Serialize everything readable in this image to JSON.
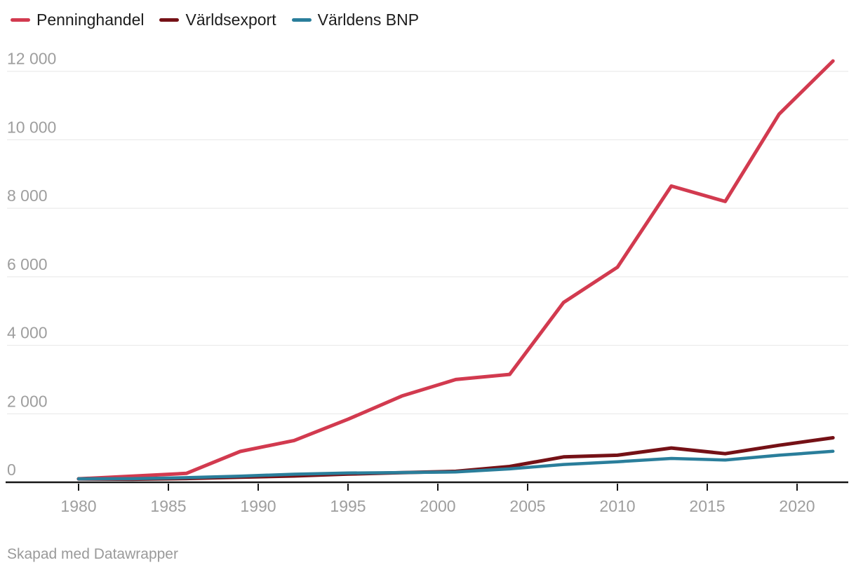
{
  "legend": {
    "items": [
      {
        "label": "Penninghandel",
        "color": "#d23a4f"
      },
      {
        "label": "Världsexport",
        "color": "#751116"
      },
      {
        "label": "Världens BNP",
        "color": "#2a7e9b"
      }
    ]
  },
  "footer": {
    "text": "Skapad med Datawrapper"
  },
  "chart_data": {
    "type": "line",
    "title": "",
    "xlabel": "",
    "ylabel": "",
    "xlim": [
      1980,
      2022
    ],
    "ylim": [
      0,
      12000
    ],
    "grid": true,
    "legend_position": "top",
    "grid_color": "#e7e7e7",
    "baseline_color": "#161616",
    "tick_label_color": "#9e9e9e",
    "x_ticks": [
      {
        "value": 1980,
        "label": "1980"
      },
      {
        "value": 1985,
        "label": "1985"
      },
      {
        "value": 1990,
        "label": "1990"
      },
      {
        "value": 1995,
        "label": "1995"
      },
      {
        "value": 2000,
        "label": "2000"
      },
      {
        "value": 2005,
        "label": "2005"
      },
      {
        "value": 2010,
        "label": "2010"
      },
      {
        "value": 2015,
        "label": "2015"
      },
      {
        "value": 2020,
        "label": "2020"
      }
    ],
    "y_ticks": [
      {
        "value": 0,
        "label": "0"
      },
      {
        "value": 2000,
        "label": "2 000"
      },
      {
        "value": 4000,
        "label": "4 000"
      },
      {
        "value": 6000,
        "label": "6 000"
      },
      {
        "value": 8000,
        "label": "8 000"
      },
      {
        "value": 10000,
        "label": "10 000"
      },
      {
        "value": 12000,
        "label": "12 000"
      }
    ],
    "series": [
      {
        "name": "Penninghandel",
        "color": "#d23a4f",
        "points": [
          [
            1980,
            100
          ],
          [
            1986,
            260
          ],
          [
            1989,
            900
          ],
          [
            1992,
            1220
          ],
          [
            1995,
            1840
          ],
          [
            1998,
            2520
          ],
          [
            2001,
            3000
          ],
          [
            2004,
            3150
          ],
          [
            2007,
            5250
          ],
          [
            2010,
            6280
          ],
          [
            2013,
            8650
          ],
          [
            2016,
            8200
          ],
          [
            2019,
            10750
          ],
          [
            2022,
            12300
          ]
        ]
      },
      {
        "name": "Världsexport",
        "color": "#751116",
        "points": [
          [
            1980,
            100
          ],
          [
            1983,
            90
          ],
          [
            1986,
            110
          ],
          [
            1989,
            150
          ],
          [
            1992,
            185
          ],
          [
            1995,
            240
          ],
          [
            1998,
            280
          ],
          [
            2001,
            320
          ],
          [
            2004,
            460
          ],
          [
            2007,
            740
          ],
          [
            2010,
            790
          ],
          [
            2013,
            1000
          ],
          [
            2016,
            835
          ],
          [
            2019,
            1080
          ],
          [
            2022,
            1300
          ]
        ]
      },
      {
        "name": "Världens BNP",
        "color": "#2a7e9b",
        "points": [
          [
            1980,
            100
          ],
          [
            1983,
            105
          ],
          [
            1986,
            135
          ],
          [
            1989,
            180
          ],
          [
            1992,
            235
          ],
          [
            1995,
            270
          ],
          [
            1998,
            285
          ],
          [
            2001,
            300
          ],
          [
            2004,
            390
          ],
          [
            2007,
            520
          ],
          [
            2010,
            600
          ],
          [
            2013,
            695
          ],
          [
            2016,
            650
          ],
          [
            2019,
            790
          ],
          [
            2022,
            905
          ]
        ]
      }
    ]
  }
}
